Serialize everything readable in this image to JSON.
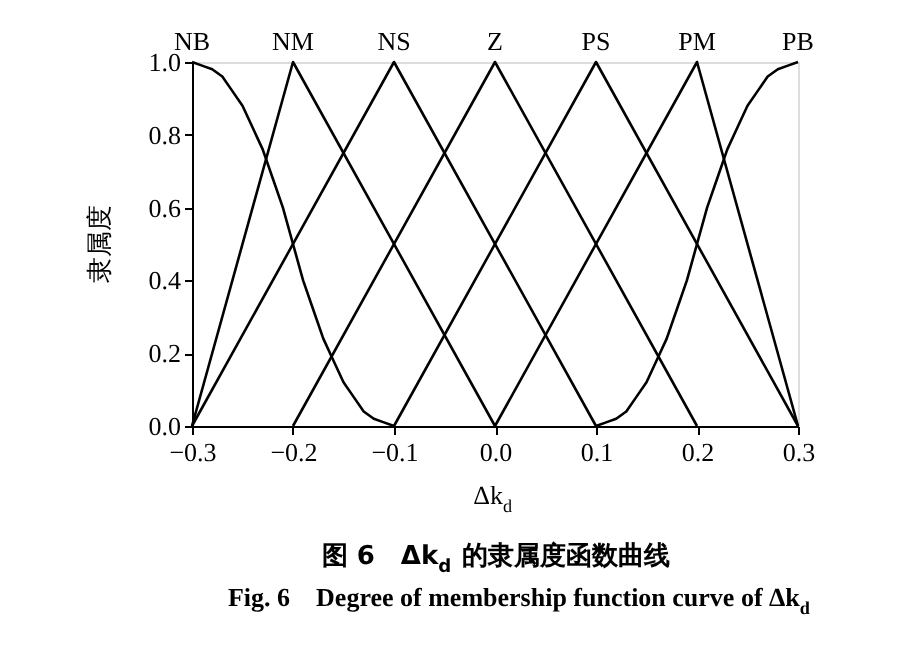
{
  "chart_data": {
    "type": "line",
    "title": "图 6　Δk$_{d}$ 的隶属度函数曲线",
    "subtitle": "Fig. 6　Degree of membership function curve of Δk$_{d}$",
    "xlabel": "Δk$_{d}$",
    "ylabel": "隶属度",
    "series": [
      {
        "name": "NB",
        "color": "#000000",
        "x": [
          -0.3,
          -0.29,
          -0.28,
          -0.27,
          -0.26,
          -0.25,
          -0.24,
          -0.23,
          -0.22,
          -0.21,
          -0.2,
          -0.19,
          -0.18,
          -0.17,
          -0.16,
          -0.15,
          -0.14,
          -0.13,
          -0.12,
          -0.11,
          -0.1
        ],
        "values": [
          1,
          0.99,
          0.98,
          0.96,
          0.92,
          0.88,
          0.82,
          0.76,
          0.68,
          0.6,
          0.5,
          0.4,
          0.32,
          0.24,
          0.18,
          0.12,
          0.08,
          0.04,
          0.02,
          0.01,
          0
        ]
      },
      {
        "name": "NM",
        "color": "#000000",
        "x": [
          -0.3,
          -0.2,
          0.0
        ],
        "values": [
          0,
          1,
          0
        ]
      },
      {
        "name": "NS",
        "color": "#000000",
        "x": [
          -0.3,
          -0.1,
          0.1
        ],
        "values": [
          0,
          1,
          0
        ]
      },
      {
        "name": "Z",
        "color": "#000000",
        "x": [
          -0.2,
          0.0,
          0.2
        ],
        "values": [
          0,
          1,
          0
        ]
      },
      {
        "name": "PS",
        "color": "#000000",
        "x": [
          -0.1,
          0.1,
          0.3
        ],
        "values": [
          0,
          1,
          0
        ]
      },
      {
        "name": "PM",
        "color": "#000000",
        "x": [
          0.0,
          0.2,
          0.3
        ],
        "values": [
          0,
          1,
          0
        ]
      },
      {
        "name": "PB",
        "color": "#000000",
        "x": [
          0.1,
          0.11,
          0.12,
          0.13,
          0.14,
          0.15,
          0.16,
          0.17,
          0.18,
          0.19,
          0.2,
          0.21,
          0.22,
          0.23,
          0.24,
          0.25,
          0.26,
          0.27,
          0.28,
          0.29,
          0.3
        ],
        "values": [
          0,
          0.01,
          0.02,
          0.04,
          0.08,
          0.12,
          0.18,
          0.24,
          0.32,
          0.4,
          0.5,
          0.6,
          0.68,
          0.76,
          0.82,
          0.88,
          0.92,
          0.96,
          0.98,
          0.99,
          1
        ]
      }
    ],
    "xlim": [
      -0.3,
      0.3
    ],
    "ylim": [
      0,
      1
    ],
    "xticks": [
      {
        "value": -0.3,
        "label": "−0.3"
      },
      {
        "value": -0.2,
        "label": "−0.2"
      },
      {
        "value": -0.1,
        "label": "−0.1"
      },
      {
        "value": 0,
        "label": "0.0"
      },
      0.1,
      0.2,
      0.3
    ],
    "yticks": [
      {
        "value": 0,
        "label": "0.0"
      },
      0.2,
      0.4,
      0.6,
      0.8,
      {
        "value": 1,
        "label": "1.0"
      }
    ],
    "grid": false,
    "legend": false,
    "marker": "none",
    "line_style": "solid"
  }
}
